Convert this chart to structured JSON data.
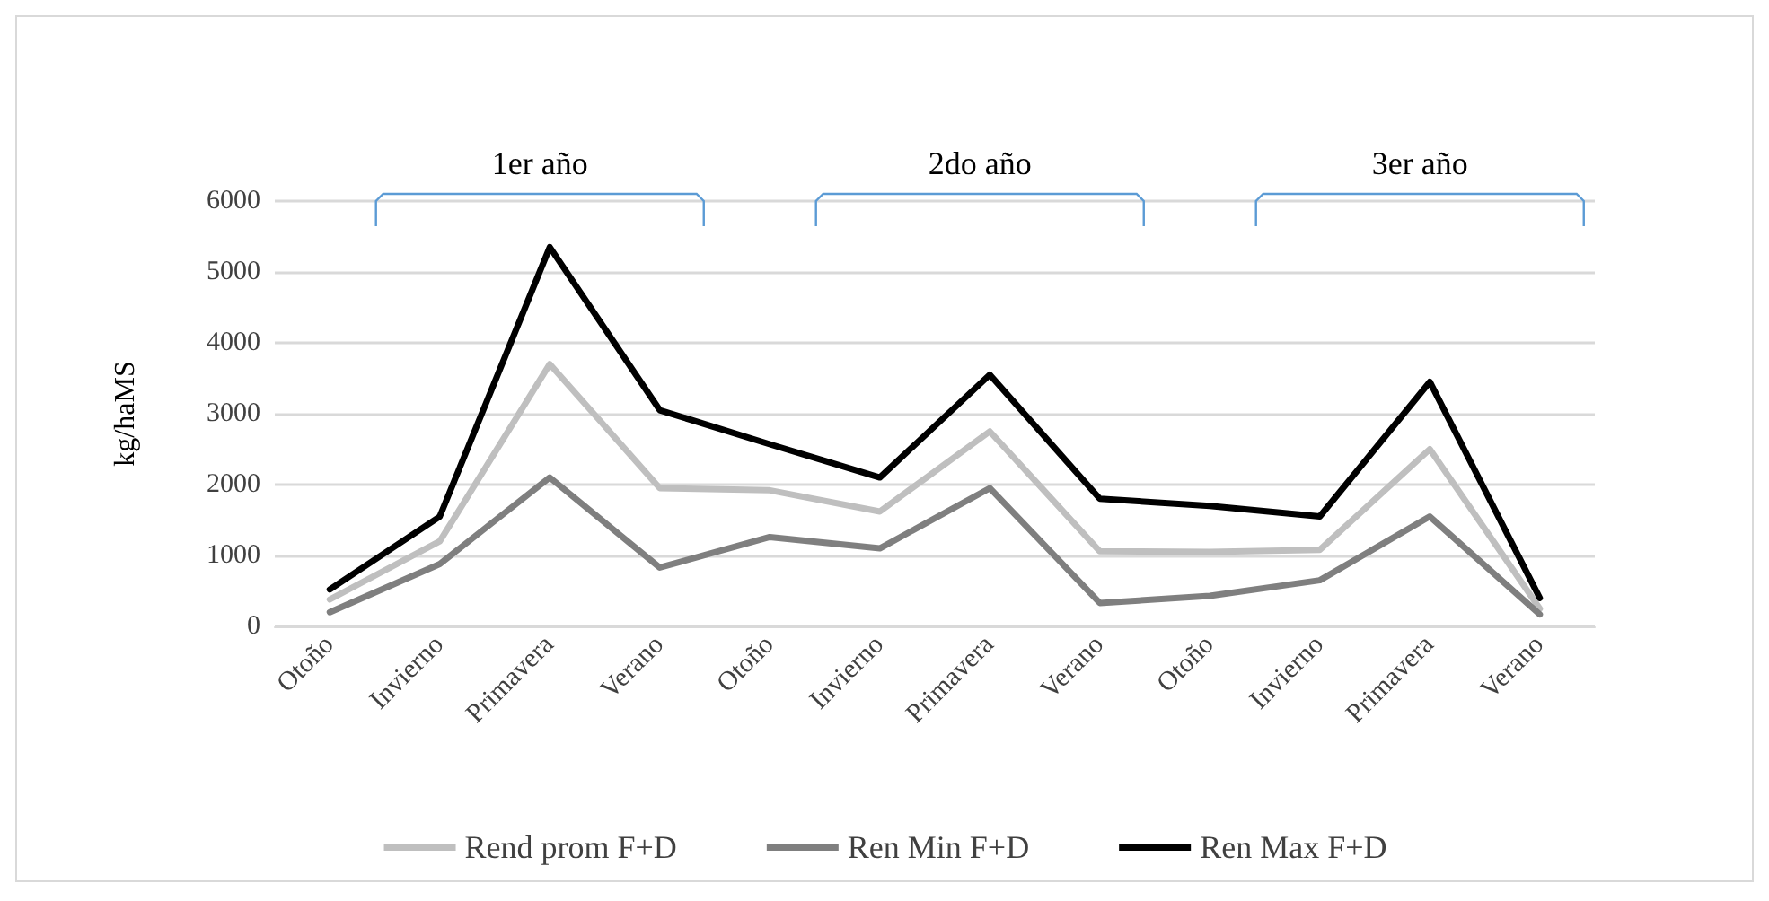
{
  "chart_data": {
    "type": "line",
    "ylabel": "kg/haMS",
    "categories": [
      "Otoño",
      "Invierno",
      "Primavera",
      "Verano",
      "Otoño",
      "Invierno",
      "Primavera",
      "Verano",
      "Otoño",
      "Invierno",
      "Primavera",
      "Verano"
    ],
    "series": [
      {
        "name": "Rend prom F+D",
        "color": "#bfbfbf",
        "values": [
          380,
          1200,
          3700,
          1950,
          1920,
          1620,
          2750,
          1060,
          1050,
          1080,
          2500,
          250
        ]
      },
      {
        "name": "Ren Min F+D",
        "color": "#7f7f7f",
        "values": [
          200,
          880,
          2100,
          830,
          1260,
          1100,
          1950,
          330,
          430,
          650,
          1550,
          170
        ]
      },
      {
        "name": "Ren Max F+D",
        "color": "#000000",
        "values": [
          520,
          1550,
          5350,
          3050,
          2570,
          2100,
          3550,
          1800,
          1700,
          1550,
          3450,
          400
        ]
      }
    ],
    "annotations": [
      "1er año",
      "2do año",
      "3er año"
    ],
    "ylim": [
      0,
      6000
    ],
    "yticks": [
      0,
      1000,
      2000,
      3000,
      4000,
      5000,
      6000
    ],
    "grid": "y",
    "legend": "bottom",
    "marker": "none",
    "line_style": "solid"
  }
}
